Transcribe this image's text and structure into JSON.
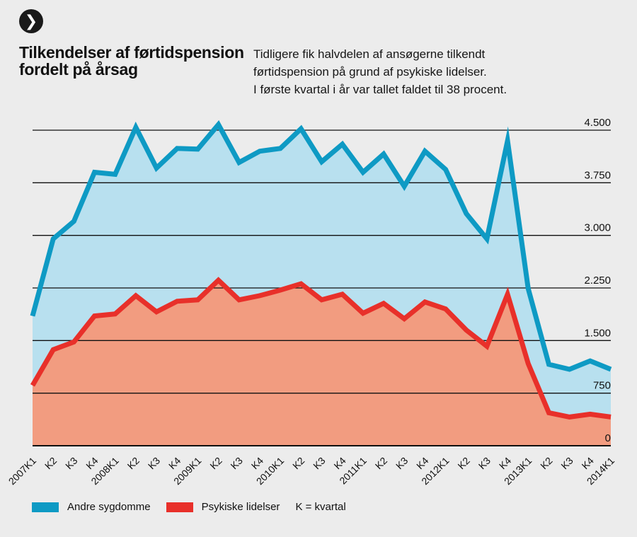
{
  "header": {
    "badge_icon": "chevron-right-icon",
    "badge_glyph": "❯",
    "title_lines": [
      "Tilkendelser af førtidspension",
      "fordelt på årsag"
    ],
    "subtitle_lines": [
      "Tidligere fik halvdelen af ansøgerne tilkendt",
      "førtidspension på grund af psykiske lidelser.",
      "I første kvartal i år var tallet faldet til 38 procent."
    ]
  },
  "legend": {
    "items": [
      {
        "label": "Andre sygdomme",
        "color": "#0e9ac4"
      },
      {
        "label": "Psykiske lidelser",
        "color": "#e8302a"
      }
    ],
    "note": "K = kvartal"
  },
  "colors": {
    "blue_line": "#0e9ac4",
    "blue_fill": "#b8e0ef",
    "red_line": "#e8302a",
    "red_fill": "#f29c80",
    "grid": "#111111",
    "background": "#ececec"
  },
  "chart_data": {
    "type": "area",
    "title": "Tilkendelser af førtidspension fordelt på årsag",
    "xlabel": "",
    "ylabel": "",
    "ylim": [
      0,
      4500
    ],
    "yticks": [
      0,
      750,
      1500,
      2250,
      3000,
      3750,
      4500
    ],
    "ytick_labels": [
      "0",
      "750",
      "1.500",
      "2.250",
      "3.000",
      "3.750",
      "4.500"
    ],
    "grid": true,
    "legend_position": "bottom-left",
    "categories": [
      "2007K1",
      "K2",
      "K3",
      "K4",
      "2008K1",
      "K2",
      "K3",
      "K4",
      "2009K1",
      "K2",
      "K3",
      "K4",
      "2010K1",
      "K2",
      "K3",
      "K4",
      "2011K1",
      "K2",
      "K3",
      "K4",
      "2012K1",
      "K2",
      "K3",
      "K4",
      "2013K1",
      "K2",
      "K3",
      "K4",
      "2014K1"
    ],
    "series": [
      {
        "name": "Andre sygdomme",
        "values": [
          1850,
          2950,
          3200,
          3900,
          3870,
          4540,
          3960,
          4240,
          4230,
          4580,
          4040,
          4200,
          4240,
          4520,
          4050,
          4300,
          3900,
          4160,
          3700,
          4200,
          3940,
          3310,
          2950,
          4350,
          2240,
          1160,
          1090,
          1210,
          1090
        ]
      },
      {
        "name": "Psykiske lidelser",
        "values": [
          860,
          1370,
          1480,
          1850,
          1880,
          2140,
          1910,
          2060,
          2080,
          2360,
          2080,
          2140,
          2220,
          2310,
          2080,
          2160,
          1890,
          2030,
          1810,
          2050,
          1950,
          1650,
          1420,
          2160,
          1170,
          470,
          410,
          450,
          410
        ]
      }
    ]
  }
}
